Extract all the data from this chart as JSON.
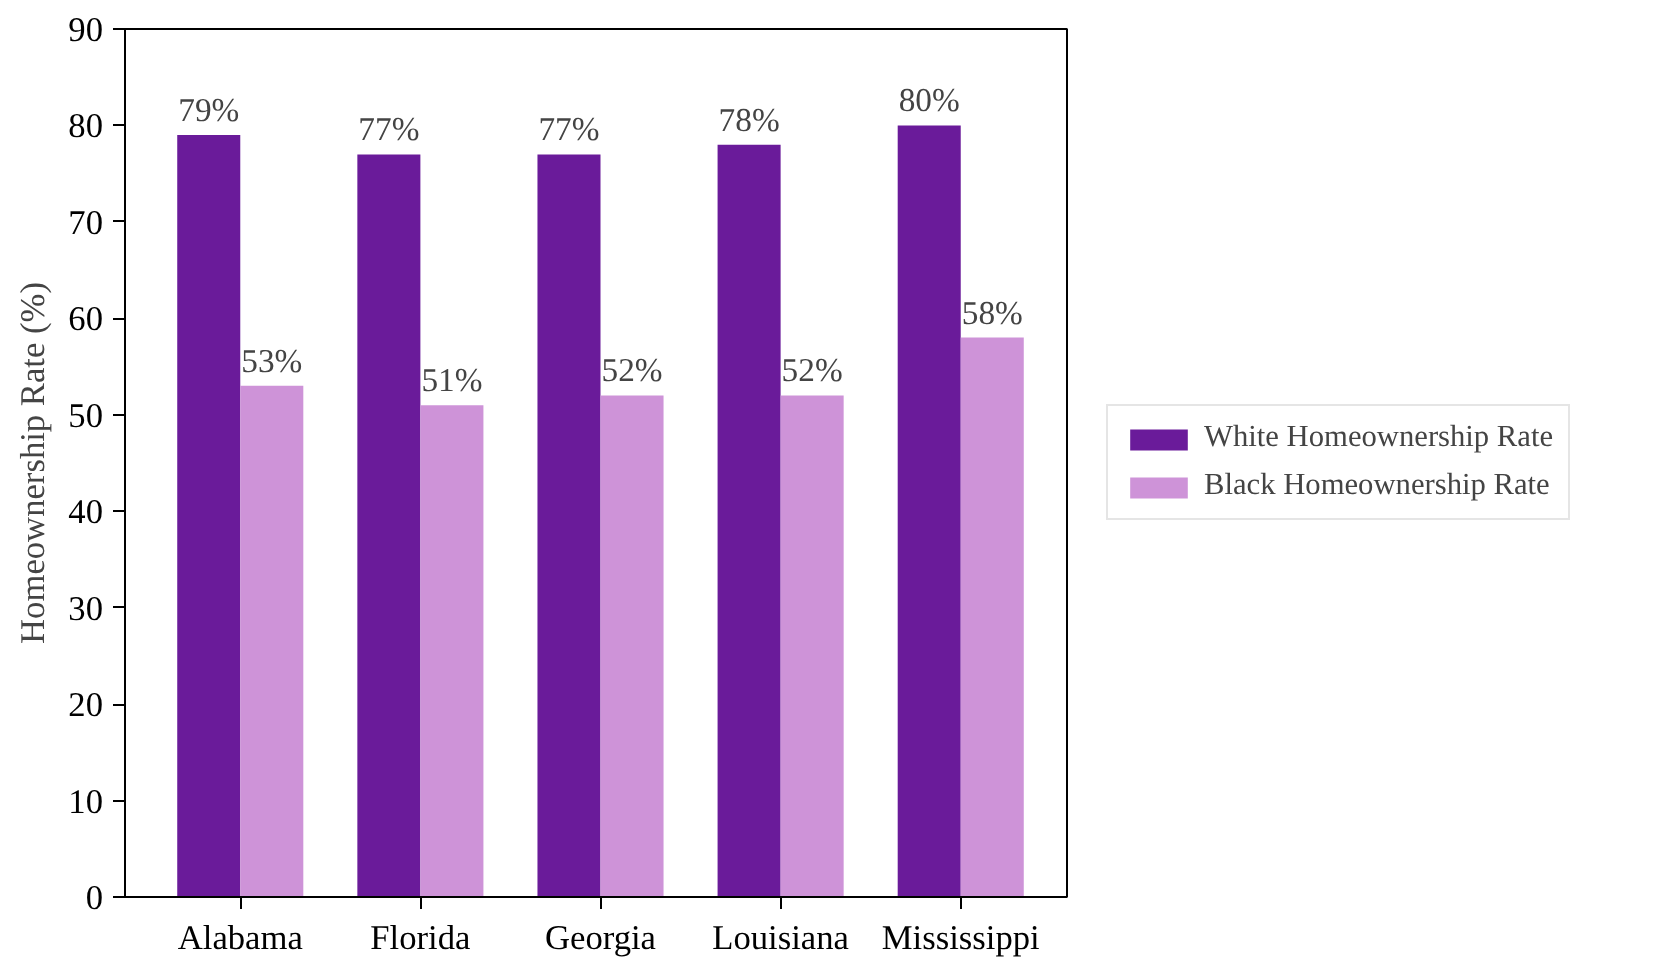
{
  "chart_data": {
    "type": "bar",
    "ylabel": "Homeownership Rate (%)",
    "categories": [
      "Alabama",
      "Florida",
      "Georgia",
      "Louisiana",
      "Mississippi"
    ],
    "series": [
      {
        "name": "White Homeownership Rate",
        "color": "#6a1b9a",
        "values": [
          79,
          77,
          77,
          78,
          80
        ],
        "value_labels": [
          "79%",
          "77%",
          "77%",
          "78%",
          "80%"
        ]
      },
      {
        "name": "Black Homeownership Rate",
        "color": "#ce93d8",
        "values": [
          53,
          51,
          52,
          52,
          58
        ],
        "value_labels": [
          "53%",
          "51%",
          "52%",
          "52%",
          "58%"
        ]
      }
    ],
    "ylim": [
      0,
      90
    ],
    "yticks": [
      0,
      10,
      20,
      30,
      40,
      50,
      60,
      70,
      80,
      90
    ],
    "grid": false,
    "legend": "right"
  }
}
